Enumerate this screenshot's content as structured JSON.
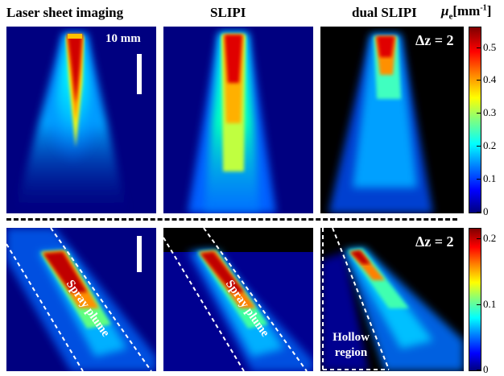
{
  "columns": {
    "laser": "Laser sheet imaging",
    "slipi": "SLIPI",
    "dual": "dual SLIPI"
  },
  "scale_bar_label": "10 mm",
  "delta_z_label": "Δz = 2",
  "mu_symbol": "μ",
  "mu_subscript": "e",
  "mu_unit": "[mm",
  "mu_unit_exp": "-1",
  "mu_unit_close": "]",
  "spray_plume_label": "Spray plume",
  "hollow_region_label": "Hollow region",
  "colorbar_top": {
    "ticks": [
      "0.5",
      "0.4",
      "0.3",
      "0.2",
      "0.1",
      "0"
    ],
    "values": [
      0.5,
      0.4,
      0.3,
      0.2,
      0.1,
      0
    ],
    "max": 0.56
  },
  "colorbar_bottom": {
    "ticks": [
      "0.2",
      "0.1",
      "0"
    ],
    "values": [
      0.2,
      0.1,
      0
    ],
    "max": 0.215
  },
  "colormap": [
    "#00007f",
    "#0000ff",
    "#007fff",
    "#00ffff",
    "#7fff7f",
    "#ffff00",
    "#ff7f00",
    "#ff0000",
    "#7f0000"
  ]
}
